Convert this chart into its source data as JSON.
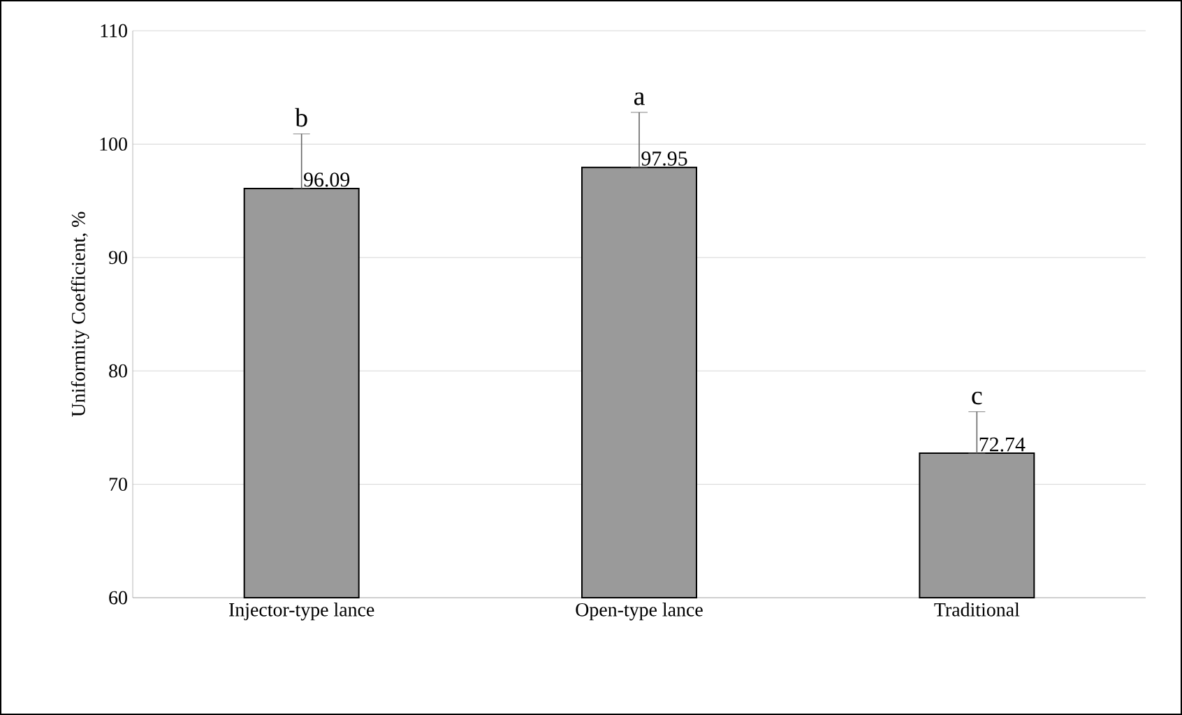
{
  "chart_data": {
    "type": "bar",
    "ylabel": "Uniformity Coefficient, %",
    "categories": [
      "Injector-type lance",
      "Open-type lance",
      "Traditional"
    ],
    "values": [
      96.09,
      97.95,
      72.74
    ],
    "value_labels": [
      "96.09",
      "97.95",
      "72.74"
    ],
    "errors": [
      [
        96.09,
        100.9
      ],
      [
        97.95,
        102.8
      ],
      [
        72.74,
        76.4
      ]
    ],
    "color": "#9a9a9a",
    "ylim": [
      60,
      110
    ],
    "yticks": [
      60,
      70,
      80,
      90,
      100,
      110
    ],
    "grid": "y",
    "annotations": [
      "b",
      "a",
      "c"
    ]
  }
}
